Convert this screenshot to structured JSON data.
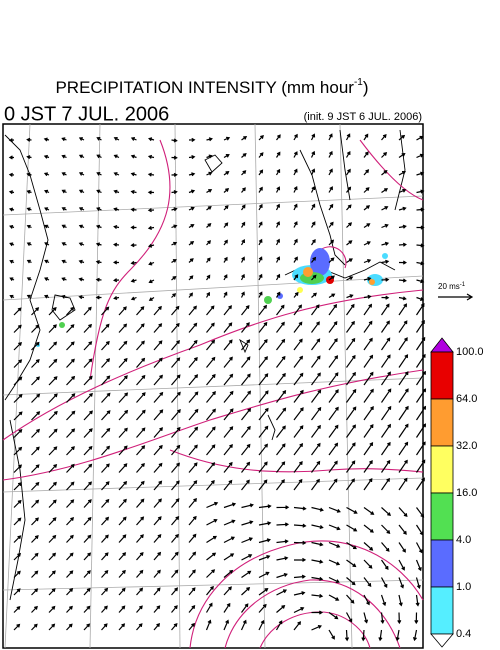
{
  "header": {
    "title": "PRECIPITATION INTENSITY (mm hour",
    "title_sup": "-1",
    "title_close": ")",
    "valid_time": "0 JST 7 JUL. 2006",
    "init_time": "(init. 9 JST 6 JUL. 2006)"
  },
  "wind_scale": {
    "label": "20 ms",
    "label_sup": "-1"
  },
  "colorbar": {
    "labels": [
      "100.0",
      "64.0",
      "32.0",
      "16.0",
      "4.0",
      "1.0",
      "0.4"
    ]
  }
}
